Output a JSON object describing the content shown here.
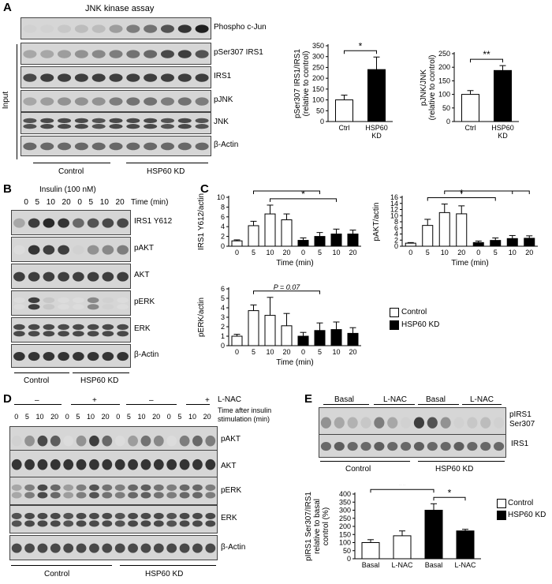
{
  "panelA": {
    "label": "A",
    "assay_title": "JNK kinase assay",
    "input_label": "Input",
    "blot_labels": [
      "Phospho c-Jun",
      "pSer307 IRS1",
      "IRS1",
      "pJNK",
      "JNK",
      "β-Actin"
    ],
    "groups": [
      "Control",
      "HSP60 KD"
    ]
  },
  "panelB": {
    "label": "B",
    "treatment": "Insulin (100 nM)",
    "time_label": "Time (min)",
    "times": [
      "0",
      "5",
      "10",
      "20",
      "0",
      "5",
      "10",
      "20"
    ],
    "blot_labels": [
      "IRS1 Y612",
      "pAKT",
      "AKT",
      "pERK",
      "ERK",
      "β-Actin"
    ],
    "groups": [
      "Control",
      "HSP60 KD"
    ]
  },
  "panelC": {
    "label": "C",
    "legend": [
      "Control",
      "HSP60 KD"
    ]
  },
  "panelD": {
    "label": "D",
    "lnac_label": "L-NAC",
    "lnac_states": [
      "–",
      "+",
      "–",
      "+"
    ],
    "time_note_1": "Time after insulin",
    "time_note_2": "stimulation (min)",
    "times": [
      "0",
      "5",
      "10",
      "20",
      "0",
      "5",
      "10",
      "20",
      "0",
      "5",
      "10",
      "20",
      "0",
      "5",
      "10",
      "20"
    ],
    "blot_labels": [
      "pAKT",
      "AKT",
      "pERK",
      "ERK",
      "β-Actin"
    ],
    "groups": [
      "Control",
      "HSP60 KD"
    ]
  },
  "panelE": {
    "label": "E",
    "conditions": [
      "Basal",
      "L-NAC",
      "Basal",
      "L-NAC"
    ],
    "blot_label_1": "pIRS1",
    "blot_label_2": "Ser307",
    "blot_label_3": "IRS1",
    "groups": [
      "Control",
      "HSP60 KD"
    ],
    "legend": [
      "Control",
      "HSP60 KD"
    ]
  },
  "colors": {
    "control_bar": "#ffffff",
    "kd_bar": "#000000",
    "band": "#1a1a1a"
  },
  "chart_data": [
    {
      "id": "A1",
      "type": "bar",
      "categories": [
        "Ctrl",
        "HSP60\nKD"
      ],
      "values": [
        100,
        240
      ],
      "errors": [
        22,
        58
      ],
      "ylabel": "pSer307 IRS1/IRS1\n(relative to control)",
      "ylim": [
        0,
        350
      ],
      "yticks": [
        0,
        50,
        100,
        150,
        200,
        250,
        300,
        350
      ],
      "significance": [
        {
          "from": 0,
          "to": 1,
          "label": "*"
        }
      ]
    },
    {
      "id": "A2",
      "type": "bar",
      "categories": [
        "Ctrl",
        "HSP60\nKD"
      ],
      "values": [
        100,
        188
      ],
      "errors": [
        14,
        18
      ],
      "ylabel": "pJNK/JNK\n(relative to control)",
      "ylim": [
        0,
        250
      ],
      "yticks": [
        0,
        50,
        100,
        150,
        200,
        250
      ],
      "significance": [
        {
          "from": 0,
          "to": 1,
          "label": "**"
        }
      ]
    },
    {
      "id": "C1",
      "type": "bar",
      "categories": [
        "0",
        "5",
        "10",
        "20",
        "0",
        "5",
        "10",
        "20"
      ],
      "values": [
        1.1,
        4.2,
        6.6,
        5.4,
        1.2,
        2.0,
        2.5,
        2.5
      ],
      "errors": [
        0.2,
        0.9,
        1.8,
        1.2,
        0.5,
        0.8,
        1.0,
        0.8
      ],
      "groups": [
        "control",
        "control",
        "control",
        "control",
        "kd",
        "kd",
        "kd",
        "kd"
      ],
      "xlabel": "Time (min)",
      "ylabel": "IRS1 Y612/actin",
      "ylim": [
        0,
        10
      ],
      "yticks": [
        0,
        2,
        4,
        6,
        8,
        10
      ],
      "significance": [
        {
          "from": 2,
          "to": 6,
          "label": "*"
        },
        {
          "from": 1,
          "to": 5,
          "label": "*"
        }
      ]
    },
    {
      "id": "C2",
      "type": "bar",
      "categories": [
        "0",
        "5",
        "10",
        "20",
        "0",
        "5",
        "10",
        "20"
      ],
      "values": [
        1.0,
        6.8,
        11.0,
        10.6,
        1.2,
        1.9,
        2.5,
        2.6
      ],
      "errors": [
        0.2,
        2.0,
        2.8,
        2.6,
        0.5,
        0.8,
        1.0,
        0.8
      ],
      "groups": [
        "control",
        "control",
        "control",
        "control",
        "kd",
        "kd",
        "kd",
        "kd"
      ],
      "xlabel": "Time (min)",
      "ylabel": "pAKT/actin",
      "ylim": [
        0,
        16
      ],
      "yticks": [
        0,
        2,
        4,
        6,
        8,
        10,
        12,
        14,
        16
      ],
      "significance": [
        {
          "from": 1,
          "to": 5,
          "label": "*"
        },
        {
          "from": 2,
          "to": 6,
          "label": "*"
        },
        {
          "from": 3,
          "to": 7,
          "label": "*"
        }
      ]
    },
    {
      "id": "C3",
      "type": "bar",
      "categories": [
        "0",
        "5",
        "10",
        "20",
        "0",
        "5",
        "10",
        "20"
      ],
      "values": [
        1.0,
        3.7,
        3.2,
        2.1,
        1.0,
        1.6,
        1.7,
        1.3
      ],
      "errors": [
        0.2,
        0.6,
        1.9,
        1.3,
        0.4,
        0.8,
        0.8,
        0.6
      ],
      "groups": [
        "control",
        "control",
        "control",
        "control",
        "kd",
        "kd",
        "kd",
        "kd"
      ],
      "xlabel": "Time (min)",
      "ylabel": "pERK/actin",
      "ylim": [
        0,
        6
      ],
      "yticks": [
        0,
        1,
        2,
        3,
        4,
        5,
        6
      ],
      "significance": [
        {
          "from": 1,
          "to": 5,
          "label": "P = 0.07"
        }
      ]
    },
    {
      "id": "E1",
      "type": "bar",
      "categories": [
        "Basal",
        "L-NAC",
        "Basal",
        "L-NAC"
      ],
      "values": [
        100,
        142,
        300,
        172
      ],
      "errors": [
        18,
        30,
        40,
        10
      ],
      "groups": [
        "control",
        "control",
        "kd",
        "kd"
      ],
      "ylabel": "pIRS1 Ser307/IRS1\nrelative to basal\ncontrol (%)",
      "ylim": [
        0,
        400
      ],
      "yticks": [
        0,
        50,
        100,
        150,
        200,
        250,
        300,
        350,
        400
      ],
      "significance": [
        {
          "from": 0,
          "to": 2,
          "label": "**"
        },
        {
          "from": 2,
          "to": 3,
          "label": "*"
        }
      ]
    }
  ]
}
